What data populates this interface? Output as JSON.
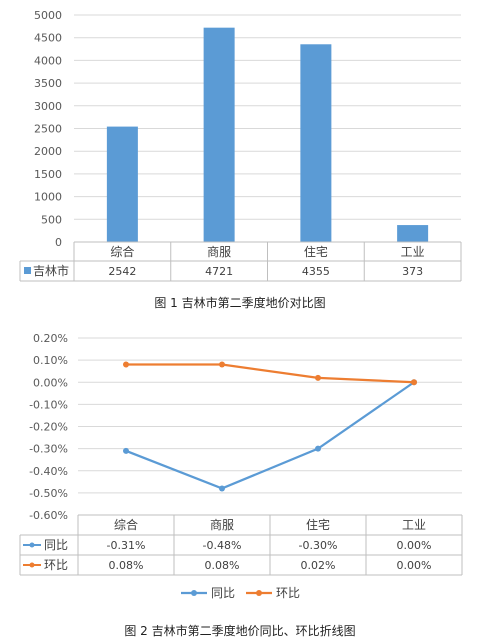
{
  "chart_data": [
    {
      "type": "bar",
      "categories": [
        "综合",
        "商服",
        "住宅",
        "工业"
      ],
      "series": [
        {
          "name": "吉林市",
          "values": [
            2542,
            4721,
            4355,
            373
          ],
          "color": "#5b9bd5"
        }
      ],
      "ylim": [
        0,
        5000
      ],
      "yticks": [
        0,
        500,
        1000,
        1500,
        2000,
        2500,
        3000,
        3500,
        4000,
        4500,
        5000
      ],
      "grid": true,
      "data_table": true,
      "table_values": [
        "2542",
        "4721",
        "4355",
        "373"
      ],
      "caption": "图 1  吉林市第二季度地价对比图"
    },
    {
      "type": "line",
      "categories": [
        "综合",
        "商服",
        "住宅",
        "工业"
      ],
      "series": [
        {
          "name": "同比",
          "values": [
            -0.31,
            -0.48,
            -0.3,
            0.0
          ],
          "labels": [
            "-0.31%",
            "-0.48%",
            "-0.30%",
            "0.00%"
          ],
          "color": "#5b9bd5"
        },
        {
          "name": "环比",
          "values": [
            0.08,
            0.08,
            0.02,
            0.0
          ],
          "labels": [
            "0.08%",
            "0.08%",
            "0.02%",
            "0.00%"
          ],
          "color": "#ed7d31"
        }
      ],
      "ylim": [
        -0.6,
        0.2
      ],
      "yticks": [
        "0.20%",
        "0.10%",
        "0.00%",
        "-0.10%",
        "-0.20%",
        "-0.30%",
        "-0.40%",
        "-0.50%",
        "-0.60%"
      ],
      "grid": true,
      "legend": "bottom",
      "data_table": true,
      "caption": "图 2  吉林市第二季度地价同比、环比折线图"
    }
  ]
}
